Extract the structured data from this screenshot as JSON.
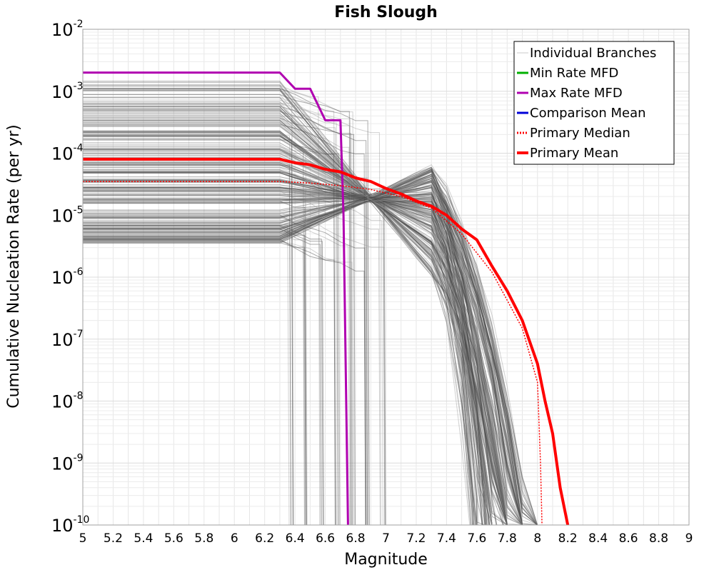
{
  "chart_data": {
    "type": "line",
    "title": "Fish Slough",
    "xlabel": "Magnitude",
    "ylabel": "Cumulative Nucleation Rate (per yr)",
    "x_scale": "linear",
    "y_scale": "log",
    "xlim": [
      5,
      9
    ],
    "ylim": [
      1e-10,
      0.01
    ],
    "x_ticks": [
      "5",
      "5.2",
      "5.4",
      "5.6",
      "5.8",
      "6",
      "6.2",
      "6.4",
      "6.6",
      "6.8",
      "7",
      "7.2",
      "7.4",
      "7.6",
      "7.8",
      "8",
      "8.2",
      "8.4",
      "8.6",
      "8.8",
      "9"
    ],
    "y_ticks": [
      {
        "base": "10",
        "exp": "-2",
        "value": 0.01
      },
      {
        "base": "10",
        "exp": "-3",
        "value": 0.001
      },
      {
        "base": "10",
        "exp": "-4",
        "value": 0.0001
      },
      {
        "base": "10",
        "exp": "-5",
        "value": 1e-05
      },
      {
        "base": "10",
        "exp": "-6",
        "value": 1e-06
      },
      {
        "base": "10",
        "exp": "-7",
        "value": 1e-07
      },
      {
        "base": "10",
        "exp": "-8",
        "value": 1e-08
      },
      {
        "base": "10",
        "exp": "-9",
        "value": 1e-09
      },
      {
        "base": "10",
        "exp": "-10",
        "value": 1e-10
      }
    ],
    "grid": true,
    "legend_position": "top-right",
    "legend": [
      {
        "label": "Individual Branches",
        "color": "#c8c8c8",
        "style": "solid",
        "width": 1
      },
      {
        "label": "Min Rate MFD",
        "color": "#00b000",
        "style": "solid",
        "width": 3
      },
      {
        "label": "Max Rate MFD",
        "color": "#b000b0",
        "style": "solid",
        "width": 3
      },
      {
        "label": "Comparison Mean",
        "color": "#0000d8",
        "style": "solid",
        "width": 3
      },
      {
        "label": "Primary Median",
        "color": "#ff0000",
        "style": "dotted",
        "width": 3
      },
      {
        "label": "Primary Mean",
        "color": "#ff0000",
        "style": "solid",
        "width": 4
      }
    ],
    "individual_branches": {
      "color": "#4a4a4a",
      "count": 260,
      "rate_range": [
        3.5e-06,
        0.0015
      ],
      "max_magnitude_range": [
        6.3,
        8.22
      ]
    },
    "series": [
      {
        "name": "Max Rate MFD",
        "color": "#b000b0",
        "style": "solid",
        "x": [
          5.0,
          6.3,
          6.4,
          6.5,
          6.6,
          6.7,
          6.72,
          6.75
        ],
        "y": [
          0.002,
          0.002,
          0.0011,
          0.0011,
          0.00034,
          0.00034,
          1e-05,
          1e-10
        ]
      },
      {
        "name": "Primary Mean",
        "color": "#ff0000",
        "style": "solid",
        "x": [
          5.0,
          6.3,
          6.4,
          6.5,
          6.6,
          6.7,
          6.8,
          6.9,
          7.0,
          7.1,
          7.2,
          7.3,
          7.4,
          7.5,
          7.6,
          7.7,
          7.8,
          7.9,
          8.0,
          8.05,
          8.1,
          8.15,
          8.2
        ],
        "y": [
          8e-05,
          8e-05,
          7e-05,
          6.5e-05,
          5.5e-05,
          5e-05,
          4e-05,
          3.5e-05,
          2.7e-05,
          2.2e-05,
          1.7e-05,
          1.4e-05,
          1e-05,
          6e-06,
          4e-06,
          1.5e-06,
          6e-07,
          2e-07,
          4e-08,
          1e-08,
          3e-09,
          4e-10,
          1e-10
        ]
      },
      {
        "name": "Primary Median",
        "color": "#ff0000",
        "style": "dotted",
        "x": [
          5.0,
          6.3,
          6.5,
          6.7,
          6.9,
          7.1,
          7.3,
          7.5,
          7.7,
          7.9,
          8.0,
          8.02,
          8.03
        ],
        "y": [
          3.5e-05,
          3.5e-05,
          3.3e-05,
          3e-05,
          2.6e-05,
          2e-05,
          1.3e-05,
          5e-06,
          1.2e-06,
          1.5e-07,
          2e-08,
          1e-09,
          1e-10
        ]
      }
    ]
  }
}
